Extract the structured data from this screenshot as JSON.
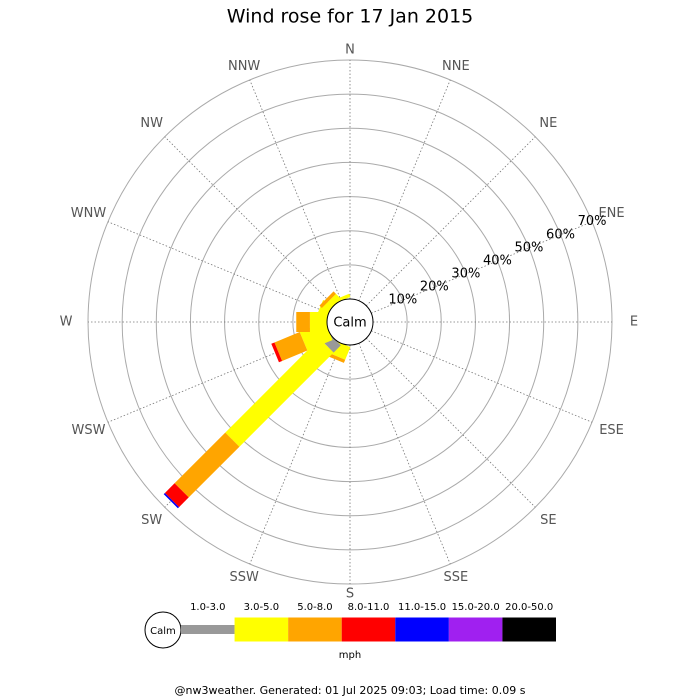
{
  "chart_data": {
    "type": "windrose",
    "title": "Wind rose for 17 Jan 2015",
    "calm_label": "Calm",
    "directions": [
      "N",
      "NNE",
      "NE",
      "ENE",
      "E",
      "ESE",
      "SE",
      "SSE",
      "S",
      "SSW",
      "SW",
      "WSW",
      "W",
      "WNW",
      "NW",
      "NNW"
    ],
    "rlim": [
      0,
      70
    ],
    "rticks": [
      {
        "value": 10,
        "label": "10%"
      },
      {
        "value": 20,
        "label": "20%"
      },
      {
        "value": 30,
        "label": "30%"
      },
      {
        "value": 40,
        "label": "40%"
      },
      {
        "value": 50,
        "label": "50%"
      },
      {
        "value": 60,
        "label": "60%"
      },
      {
        "value": 70,
        "label": "70%"
      }
    ],
    "series": [
      {
        "name": "1.0-3.0",
        "color": "#999999",
        "values": [
          0,
          0,
          0,
          0,
          0,
          0,
          0,
          0,
          0,
          0,
          3,
          0,
          0,
          0,
          0,
          0
        ]
      },
      {
        "name": "3.0-5.0",
        "color": "#ffff00",
        "values": [
          0,
          0,
          0,
          0,
          0,
          0,
          0,
          0,
          0,
          4,
          39,
          8,
          5,
          3,
          2,
          1
        ]
      },
      {
        "name": "5.0-8.0",
        "color": "#ffa500",
        "values": [
          0,
          0,
          0,
          0,
          0,
          0,
          0,
          0,
          0,
          1,
          21,
          8,
          4,
          0,
          1,
          0
        ]
      },
      {
        "name": "8.0-11.0",
        "color": "#ff0000",
        "values": [
          0,
          0,
          0,
          0,
          0,
          0,
          0,
          0,
          0,
          0,
          4,
          1,
          0,
          0,
          0,
          0
        ]
      },
      {
        "name": "11.0-15.0",
        "color": "#0000ff",
        "values": [
          0,
          0,
          0,
          0,
          0,
          0,
          0,
          0,
          0,
          0,
          0.5,
          0,
          0,
          0,
          0,
          0
        ]
      },
      {
        "name": "15.0-20.0",
        "color": "#a020f0",
        "values": [
          0,
          0,
          0,
          0,
          0,
          0,
          0,
          0,
          0,
          0,
          0,
          0,
          0,
          0,
          0,
          0
        ]
      },
      {
        "name": "20.0-50.0",
        "color": "#000000",
        "values": [
          0,
          0,
          0,
          0,
          0,
          0,
          0,
          0,
          0,
          0,
          0,
          0,
          0,
          0,
          0,
          0
        ]
      }
    ],
    "unit": "mph",
    "footer": "@nw3weather. Generated: 01 Jul 2025 09:03; Load time: 0.09 s"
  }
}
